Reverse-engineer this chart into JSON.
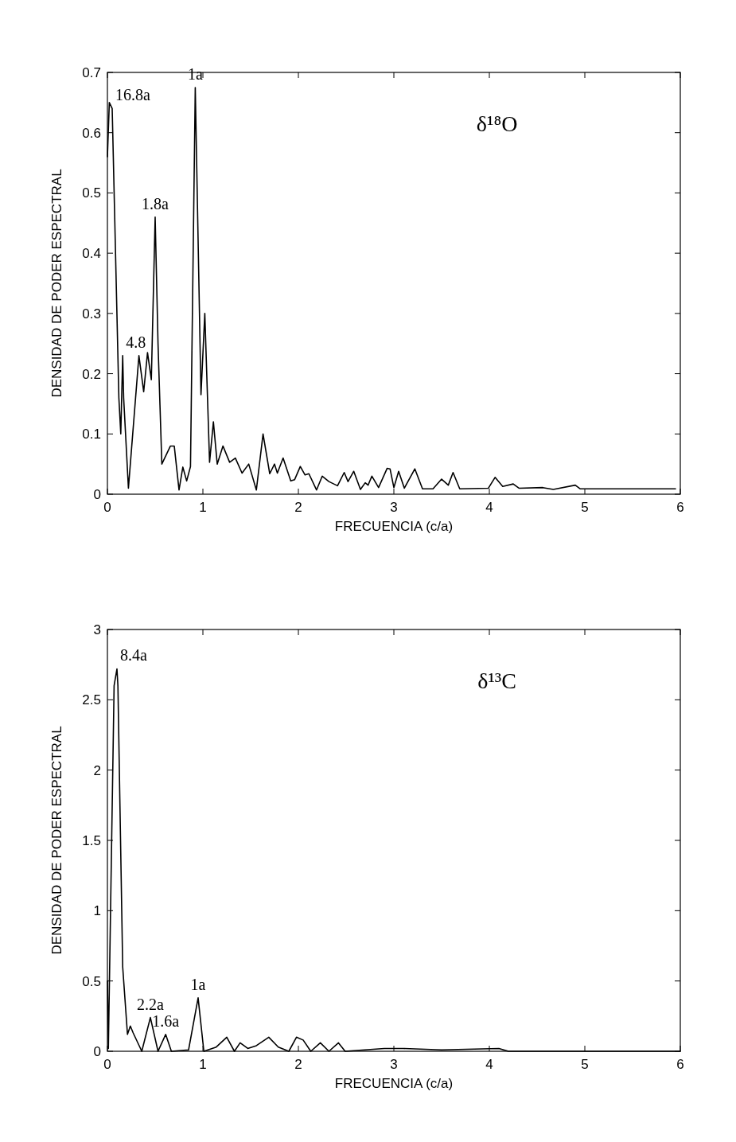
{
  "chart_data": [
    {
      "type": "line",
      "title": "δ¹⁸O",
      "xlabel": "FRECUENCIA (c/a)",
      "ylabel": "DENSIDAD DE PODER ESPECTRAL",
      "xlim": [
        0,
        6
      ],
      "xticks": [
        0,
        1,
        2,
        3,
        4,
        5,
        6
      ],
      "ylim": [
        0,
        0.7
      ],
      "yticks": [
        0,
        0.1,
        0.2,
        0.3,
        0.4,
        0.5,
        0.6,
        0.7
      ],
      "grid": false,
      "legend": false,
      "series": [
        {
          "color": "#000000",
          "x": [
            0,
            0.02,
            0.05,
            0.12,
            0.14,
            0.16,
            0.17,
            0.22,
            0.33,
            0.38,
            0.42,
            0.46,
            0.5,
            0.53,
            0.57,
            0.66,
            0.7,
            0.75,
            0.79,
            0.83,
            0.87,
            0.92,
            0.98,
            1.02,
            1.07,
            1.11,
            1.15,
            1.21,
            1.28,
            1.34,
            1.41,
            1.48,
            1.56,
            1.63,
            1.7,
            1.75,
            1.78,
            1.84,
            1.92,
            1.96,
            2.02,
            2.07,
            2.11,
            2.19,
            2.25,
            2.32,
            2.41,
            2.48,
            2.52,
            2.58,
            2.65,
            2.7,
            2.73,
            2.77,
            2.84,
            2.93,
            2.96,
            3.0,
            3.05,
            3.11,
            3.22,
            3.3,
            3.41,
            3.5,
            3.57,
            3.62,
            3.69,
            3.99,
            4.06,
            4.14,
            4.25,
            4.31,
            4.56,
            4.67,
            4.9,
            4.95,
            5.95
          ],
          "values": [
            0.56,
            0.65,
            0.64,
            0.16,
            0.1,
            0.23,
            0.16,
            0.01,
            0.23,
            0.17,
            0.235,
            0.19,
            0.46,
            0.25,
            0.05,
            0.08,
            0.08,
            0.007,
            0.045,
            0.022,
            0.046,
            0.675,
            0.165,
            0.3,
            0.053,
            0.12,
            0.05,
            0.08,
            0.053,
            0.06,
            0.035,
            0.05,
            0.007,
            0.1,
            0.034,
            0.05,
            0.035,
            0.06,
            0.022,
            0.024,
            0.046,
            0.032,
            0.034,
            0.007,
            0.03,
            0.021,
            0.014,
            0.036,
            0.021,
            0.038,
            0.008,
            0.019,
            0.015,
            0.03,
            0.011,
            0.043,
            0.042,
            0.011,
            0.038,
            0.01,
            0.042,
            0.009,
            0.009,
            0.025,
            0.015,
            0.036,
            0.009,
            0.01,
            0.028,
            0.013,
            0.017,
            0.01,
            0.011,
            0.008,
            0.015,
            0.009,
            0.009
          ]
        }
      ],
      "annotations": [
        {
          "text": "16.8a",
          "x": 0.05,
          "y": 0.64
        },
        {
          "text": "1a",
          "x": 0.92,
          "y": 0.675
        },
        {
          "text": "1.8a",
          "x": 0.5,
          "y": 0.46
        },
        {
          "text": "4.8",
          "x": 0.16,
          "y": 0.23
        }
      ]
    },
    {
      "type": "line",
      "title": "δ¹³C",
      "xlabel": "FRECUENCIA (c/a)",
      "ylabel": "DENSIDAD DE PODER ESPECTRAL",
      "xlim": [
        0,
        6
      ],
      "xticks": [
        0,
        1,
        2,
        3,
        4,
        5,
        6
      ],
      "ylim": [
        0,
        3
      ],
      "yticks": [
        0,
        0.5,
        1,
        1.5,
        2,
        2.5,
        3
      ],
      "grid": false,
      "legend": false,
      "series": [
        {
          "color": "#000000",
          "x": [
            0,
            0.01,
            0.07,
            0.1,
            0.11,
            0.16,
            0.21,
            0.24,
            0.27,
            0.36,
            0.45,
            0.53,
            0.61,
            0.67,
            0.85,
            0.95,
            1.01,
            1.14,
            1.25,
            1.33,
            1.39,
            1.47,
            1.56,
            1.69,
            1.79,
            1.9,
            1.98,
            2.05,
            2.13,
            2.23,
            2.32,
            2.42,
            2.49,
            2.9,
            3.1,
            3.5,
            4.1,
            4.2,
            5,
            6
          ],
          "values": [
            0.5,
            0.02,
            2.6,
            2.72,
            2.6,
            0.6,
            0.12,
            0.18,
            0.13,
            0.0,
            0.24,
            0.0,
            0.12,
            0.0,
            0.01,
            0.38,
            0.0,
            0.03,
            0.1,
            0.0,
            0.06,
            0.02,
            0.04,
            0.1,
            0.03,
            0.0,
            0.1,
            0.08,
            0.0,
            0.06,
            0.0,
            0.06,
            0.0,
            0.02,
            0.02,
            0.01,
            0.02,
            0.0,
            0.0,
            0.0
          ]
        }
      ],
      "annotations": [
        {
          "text": "8.4a",
          "x": 0.1,
          "y": 2.72
        },
        {
          "text": "2.2a",
          "x": 0.45,
          "y": 0.24
        },
        {
          "text": "1.6a",
          "x": 0.61,
          "y": 0.12
        },
        {
          "text": "1a",
          "x": 0.95,
          "y": 0.38
        }
      ]
    }
  ]
}
